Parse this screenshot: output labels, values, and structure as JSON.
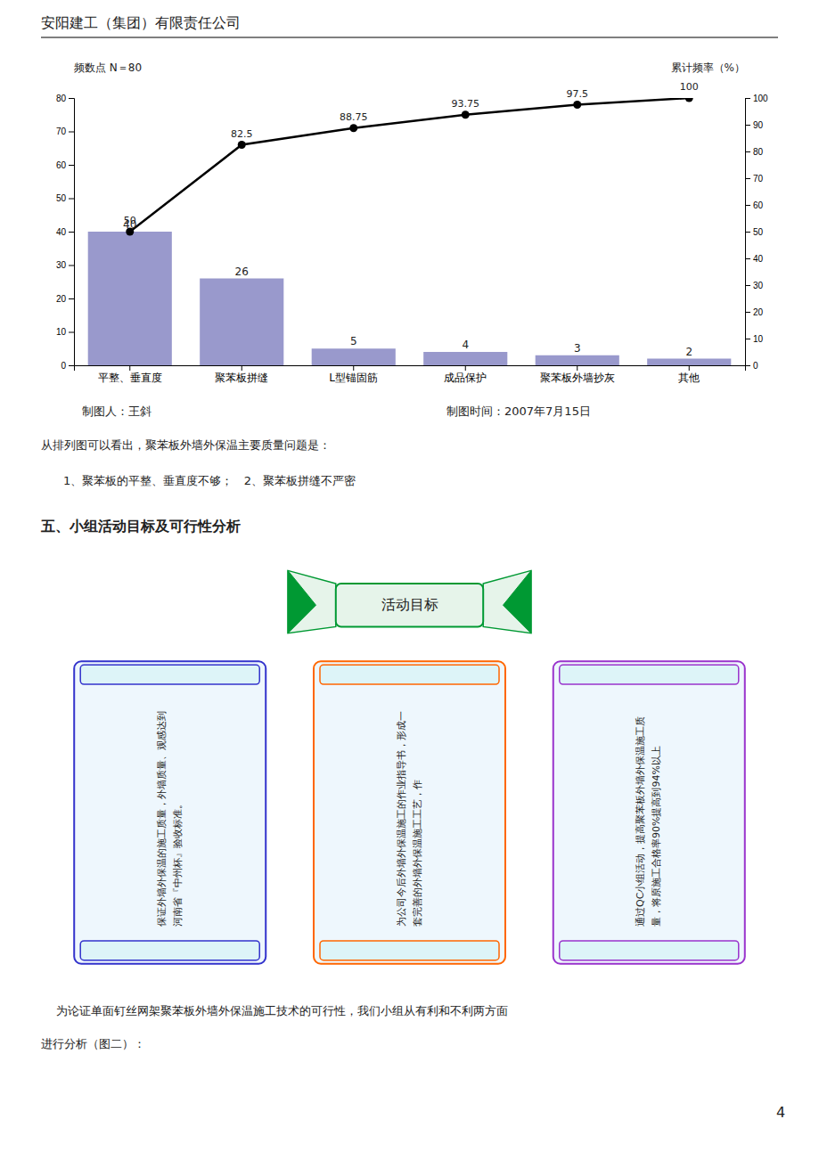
{
  "chart_data": {
    "type": "bar",
    "y_label": "频数点 N＝80",
    "y2_label": "累计频率（%）",
    "categories": [
      "平整、垂直度",
      "聚苯板拼缝",
      "L型锚固筋",
      "成品保护",
      "聚苯板外墙抄灰",
      "其他"
    ],
    "series": [
      {
        "type": "bar",
        "color": "#9999cc",
        "values": [
          40,
          26,
          5,
          4,
          3,
          2
        ],
        "data_labels": true
      },
      {
        "type": "line",
        "axis": "y2",
        "color": "#000000",
        "marker": "circle",
        "values": [
          50,
          82.5,
          88.75,
          93.75,
          97.5,
          100
        ],
        "data_labels": true
      }
    ],
    "ylim": [
      0,
      80
    ],
    "yticks": [
      0,
      10,
      20,
      30,
      40,
      50,
      60,
      70,
      80
    ],
    "y2lim": [
      0,
      100
    ],
    "y2ticks": [
      0,
      10,
      20,
      30,
      40,
      50,
      60,
      70,
      80,
      90,
      100
    ],
    "grid": false
  },
  "page": {
    "header": "安阳建工（集团）有限责任公司",
    "maker_line": "制图人：王斜",
    "maker_time": "制图时间：2007年7月15日",
    "text1": "从排列图可以看出，聚苯板外墙外保温主要质量问题是：",
    "text2": "1、聚苯板的平整、垂直度不够；   2、聚苯板拼缝不严密",
    "section_title": "五、小组活动目标及可行性分析",
    "ribbon_text": "活动目标",
    "ribbon_color": "#009933",
    "boxes": [
      {
        "text": "保证外墙外保温的施工质量，外墙质量、观感达到河南省『中州杯』验收标准。",
        "color": "#3333cc"
      },
      {
        "text": "为公司今后外墙外保温施工的作业指导书，形成一套完善的外墙外保温施工工艺，作",
        "color": "#ff6600"
      },
      {
        "text": "通过QC小组活动，提高聚苯板外墙外保温施工质量，将原施工合格率90%提高到94%以上",
        "color": "#9933cc"
      }
    ],
    "footer_text1": "    为论证单面钉丝网架聚苯板外墙外保温施工技术的可行性，我们小组从有利和不利两方面",
    "footer_text2": "进行分析（图二）：",
    "page_num": "4"
  }
}
